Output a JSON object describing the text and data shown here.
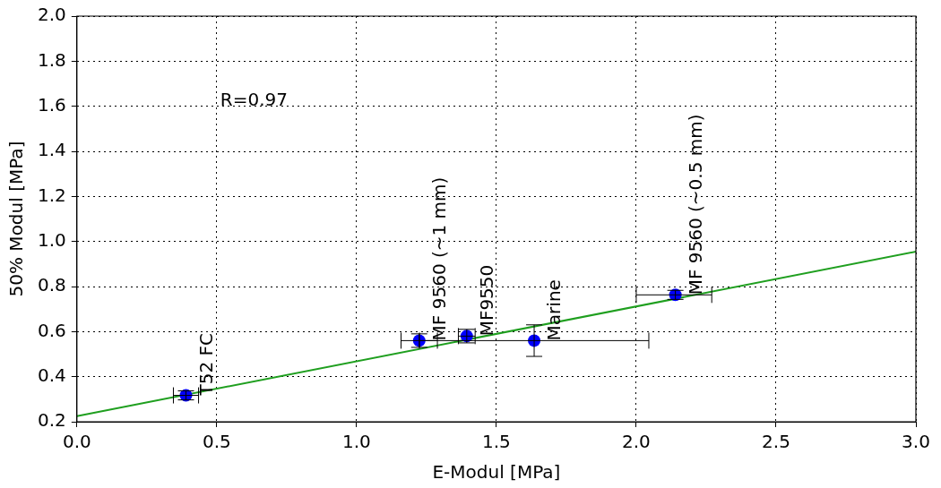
{
  "chart_data": {
    "type": "scatter",
    "xlabel": "E-Modul [MPa]",
    "ylabel": "50% Modul [MPa]",
    "series": [
      {
        "color": "#0000ff",
        "x": [
          0.39,
          1.224,
          1.394,
          1.635,
          2.14
        ],
        "values": [
          0.317,
          0.56,
          0.58,
          0.56,
          0.763
        ],
        "errors": [
          0.02,
          0.03,
          0.03,
          0.07,
          0.02
        ],
        "xerrors": [
          0.045,
          0.065,
          0.03,
          0.41,
          [
            2.0,
            2.27
          ]
        ],
        "marker": "circle"
      },
      {
        "type": "line",
        "color": "#1f9f1f",
        "x": [
          0,
          3
        ],
        "values": [
          0.225,
          0.955
        ],
        "marker": "none",
        "line_style": "solid"
      }
    ],
    "xlim": [
      0,
      3
    ],
    "ylim": [
      0.2,
      2.0
    ],
    "xticks": [
      {
        "value": 0,
        "label": "0.0"
      },
      {
        "value": 0.5,
        "label": "0.5"
      },
      {
        "value": 1,
        "label": "1.0"
      },
      {
        "value": 1.5,
        "label": "1.5"
      },
      {
        "value": 2,
        "label": "2.0"
      },
      {
        "value": 2.5,
        "label": "2.5"
      },
      {
        "value": 3,
        "label": "3.0"
      }
    ],
    "yticks": [
      {
        "value": 0.2,
        "label": "0.2"
      },
      {
        "value": 0.4,
        "label": "0.4"
      },
      {
        "value": 0.6,
        "label": "0.6"
      },
      {
        "value": 0.8,
        "label": "0.8"
      },
      {
        "value": 1,
        "label": "1.0"
      },
      {
        "value": 1.2,
        "label": "1.2"
      },
      {
        "value": 1.4,
        "label": "1.4"
      },
      {
        "value": 1.6,
        "label": "1.6"
      },
      {
        "value": 1.8,
        "label": "1.8"
      },
      {
        "value": 2,
        "label": "2.0"
      }
    ],
    "grid": true,
    "legend": false,
    "annotations": [
      "R=0.97",
      {
        "text": "T52 FC",
        "x": 0.39,
        "y": 0.317
      },
      {
        "text": "MF 9560 (~1 mm)",
        "x": 1.224,
        "y": 0.56
      },
      {
        "text": "MF9550",
        "x": 1.394,
        "y": 0.58
      },
      {
        "text": "Marine",
        "x": 1.635,
        "y": 0.56
      },
      {
        "text": "MF 9560 (~0.5 mm)",
        "x": 2.14,
        "y": 0.763
      }
    ]
  }
}
